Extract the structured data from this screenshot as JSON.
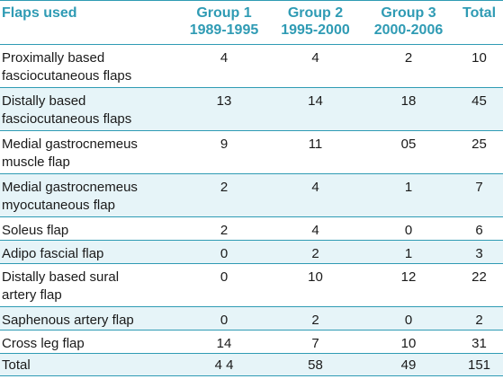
{
  "table": {
    "headers": [
      {
        "lines": [
          "Flaps used"
        ]
      },
      {
        "lines": [
          "Group 1",
          "1989-1995"
        ]
      },
      {
        "lines": [
          "Group 2",
          "1995-2000"
        ]
      },
      {
        "lines": [
          "Group 3",
          "2000-2006"
        ]
      },
      {
        "lines": [
          "Total"
        ]
      }
    ],
    "rows": [
      {
        "label": [
          "Proximally based",
          "fasciocutaneous flaps"
        ],
        "values": [
          "4",
          "4",
          "2",
          "10"
        ]
      },
      {
        "label": [
          "Distally based",
          "fasciocutaneous flaps"
        ],
        "values": [
          "13",
          "14",
          "18",
          "45"
        ]
      },
      {
        "label": [
          "Medial gastrocnemeus",
          "muscle flap"
        ],
        "values": [
          "9",
          "11",
          "05",
          "25"
        ]
      },
      {
        "label": [
          "Medial gastrocnemeus",
          "myocutaneous flap"
        ],
        "values": [
          "2",
          "4",
          "1",
          "7"
        ]
      },
      {
        "label": [
          "Soleus flap"
        ],
        "values": [
          "2",
          "4",
          "0",
          "6"
        ]
      },
      {
        "label": [
          "Adipo fascial flap"
        ],
        "values": [
          "0",
          "2",
          "1",
          "3"
        ]
      },
      {
        "label": [
          "Distally based sural",
          "artery flap"
        ],
        "values": [
          "0",
          "10",
          "12",
          "22"
        ]
      },
      {
        "label": [
          "Saphenous artery flap"
        ],
        "values": [
          "0",
          "2",
          "0",
          "2"
        ]
      },
      {
        "label": [
          "Cross leg flap"
        ],
        "values": [
          "14",
          "7",
          "10",
          "31"
        ]
      },
      {
        "label": [
          "Total"
        ],
        "values": [
          "4 4",
          "58",
          "49",
          "151"
        ]
      }
    ]
  },
  "colors": {
    "accent": "#2f9bb4",
    "alt_row": "#e6f4f8",
    "text": "#1a1a1a"
  }
}
